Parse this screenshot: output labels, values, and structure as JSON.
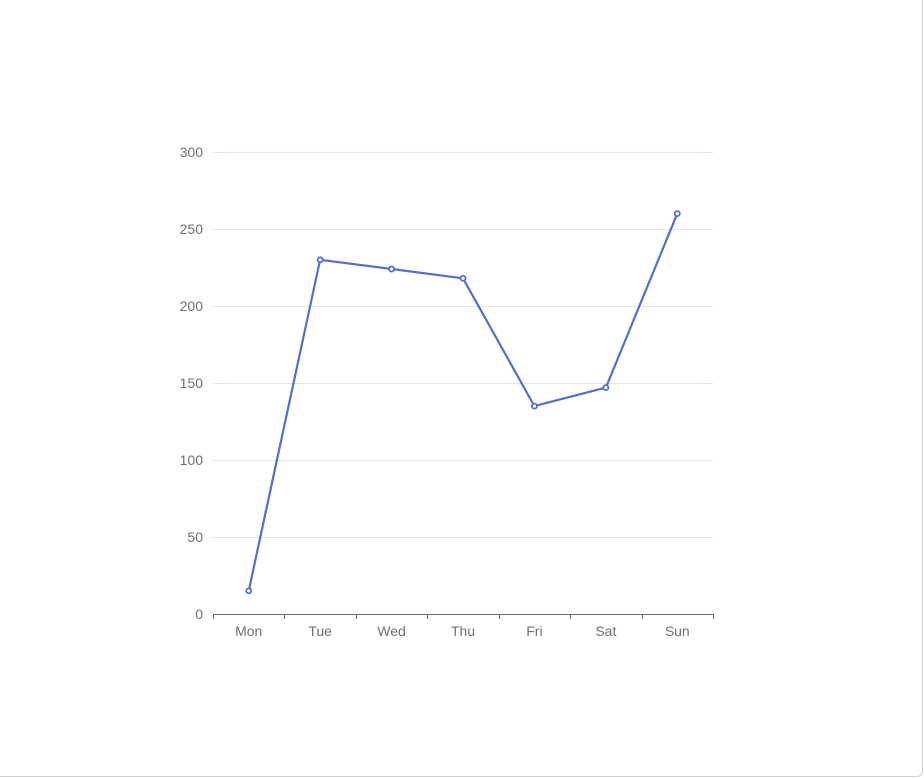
{
  "chart_data": {
    "type": "line",
    "categories": [
      "Mon",
      "Tue",
      "Wed",
      "Thu",
      "Fri",
      "Sat",
      "Sun"
    ],
    "series": [
      {
        "values": [
          15,
          230,
          224,
          218,
          135,
          147,
          260
        ]
      }
    ],
    "ylim": [
      0,
      300
    ],
    "yticks": [
      0,
      50,
      100,
      150,
      200,
      250,
      300
    ],
    "grid": true,
    "colors": {
      "line": "#5470c6",
      "grid": "#e0e6f1",
      "axis": "#6e7079",
      "tick_label": "#6e7079"
    }
  }
}
